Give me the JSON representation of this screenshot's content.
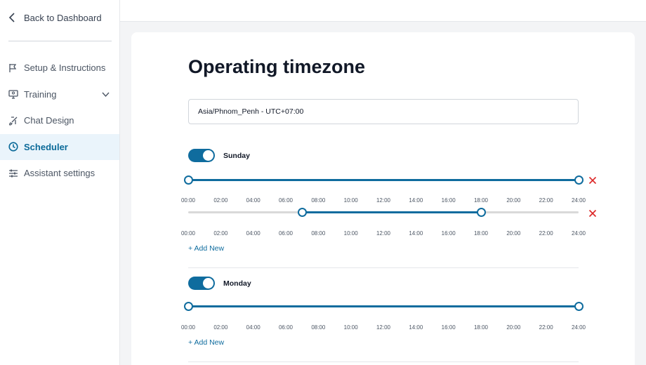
{
  "sidebar": {
    "back_label": "Back to Dashboard",
    "items": [
      {
        "label": "Setup & Instructions",
        "icon": "flag-icon"
      },
      {
        "label": "Training",
        "icon": "monitor-icon"
      },
      {
        "label": "Chat Design",
        "icon": "brush-icon"
      },
      {
        "label": "Scheduler",
        "icon": "clock-icon",
        "active": true
      },
      {
        "label": "Assistant settings",
        "icon": "sliders-icon"
      }
    ]
  },
  "main": {
    "title": "Operating timezone",
    "timezone_value": "Asia/Phnom_Penh - UTC+07:00",
    "tick_labels": [
      "00:00",
      "02:00",
      "04:00",
      "06:00",
      "08:00",
      "10:00",
      "12:00",
      "14:00",
      "16:00",
      "18:00",
      "20:00",
      "22:00",
      "24:00"
    ],
    "add_new_label": "+ Add New",
    "days": [
      {
        "name": "Sunday",
        "enabled": true,
        "ranges": [
          {
            "start_hour": 0,
            "end_hour": 24
          },
          {
            "start_hour": 7,
            "end_hour": 18
          }
        ]
      },
      {
        "name": "Monday",
        "enabled": true,
        "ranges": [
          {
            "start_hour": 0,
            "end_hour": 24
          }
        ]
      }
    ]
  },
  "colors": {
    "accent": "#0f6c9e",
    "delete": "#dc2626",
    "active_bg": "#eaf4fb"
  }
}
